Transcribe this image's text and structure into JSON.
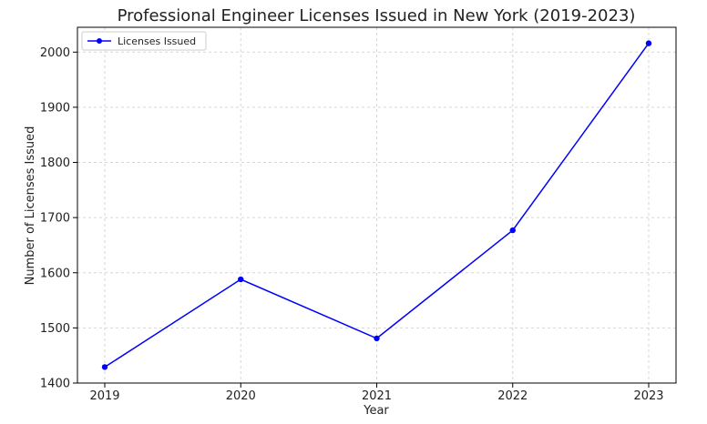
{
  "chart_data": {
    "type": "line",
    "title": "Professional Engineer Licenses Issued in New York (2019-2023)",
    "xlabel": "Year",
    "ylabel": "Number of Licenses Issued",
    "categories": [
      "2019",
      "2020",
      "2021",
      "2022",
      "2023"
    ],
    "series": [
      {
        "name": "Licenses Issued",
        "color": "#0000ff",
        "marker": "circle",
        "values": [
          1429,
          1588,
          1481,
          1677,
          2016
        ]
      }
    ],
    "ylim": [
      1400,
      2045
    ],
    "yticks": [
      1400,
      1500,
      1600,
      1700,
      1800,
      1900,
      2000
    ],
    "grid": true,
    "legend_position": "top-left"
  }
}
